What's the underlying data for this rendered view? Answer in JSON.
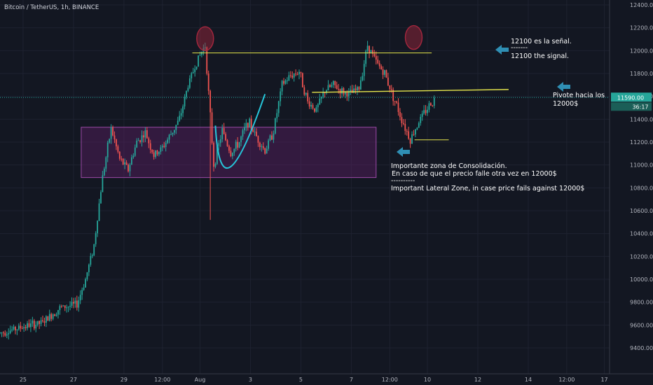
{
  "header": {
    "symbol": "Bitcoin / TetherUS, 1h, BINANCE"
  },
  "colors": {
    "background": "#131722",
    "grid": "#1e2230",
    "up": "#26a69a",
    "down": "#ef5350",
    "price_line": "#26a69a",
    "zone_fill": "#5b2063",
    "zone_border": "#9c4aa8",
    "yellow_line": "#e6e64c",
    "circle": "#a7273e",
    "arrow": "#2f8fb4",
    "cup": "#26c6da"
  },
  "chart_data": {
    "type": "candlestick",
    "title": "",
    "xlabel": "",
    "ylabel": "",
    "x_tick_labels": [
      "25",
      "27",
      "29",
      "12:00",
      "Aug",
      "3",
      "5",
      "7",
      "12:00",
      "10",
      "12",
      "14",
      "12:00",
      "17"
    ],
    "y_tick_labels": [
      "9400.00",
      "9600.00",
      "9800.00",
      "10000.00",
      "10200.00",
      "10400.00",
      "10600.00",
      "10800.00",
      "11000.00",
      "11200.00",
      "11400.00",
      "11600.00",
      "11800.00",
      "12000.00",
      "12200.00",
      "12400.00"
    ],
    "ylim": [
      9220,
      12450
    ],
    "current_price": {
      "label": "11590.00",
      "value": 11590,
      "countdown": "36:17"
    },
    "price_path": [
      [
        0,
        9530
      ],
      [
        3,
        9590
      ],
      [
        5,
        9620
      ],
      [
        7,
        9750
      ],
      [
        9,
        9780
      ],
      [
        10,
        10000
      ],
      [
        11,
        10300
      ],
      [
        12,
        10900
      ],
      [
        13,
        11320
      ],
      [
        14,
        11050
      ],
      [
        15,
        10960
      ],
      [
        16,
        11200
      ],
      [
        17,
        11280
      ],
      [
        18,
        11080
      ],
      [
        19,
        11150
      ],
      [
        20,
        11270
      ],
      [
        21,
        11400
      ],
      [
        22,
        11700
      ],
      [
        23,
        11900
      ],
      [
        24,
        12050
      ],
      [
        25,
        11000
      ],
      [
        26,
        11300
      ],
      [
        27,
        11100
      ],
      [
        28,
        11200
      ],
      [
        29,
        11380
      ],
      [
        30,
        11250
      ],
      [
        31,
        11120
      ],
      [
        32,
        11300
      ],
      [
        33,
        11700
      ],
      [
        34,
        11780
      ],
      [
        35,
        11820
      ],
      [
        36,
        11550
      ],
      [
        37,
        11480
      ],
      [
        38,
        11650
      ],
      [
        39,
        11700
      ],
      [
        40,
        11640
      ],
      [
        41,
        11620
      ],
      [
        42,
        11670
      ],
      [
        43,
        12050
      ],
      [
        44,
        11900
      ],
      [
        45,
        11800
      ],
      [
        46,
        11600
      ],
      [
        47,
        11400
      ],
      [
        48,
        11220
      ],
      [
        49,
        11380
      ],
      [
        50,
        11500
      ],
      [
        51,
        11590
      ]
    ],
    "annotations": {
      "resistance_line": {
        "value": 11980,
        "x_start": 22.5,
        "x_end": 50.5
      },
      "pivot_line": {
        "value_start": 11635,
        "value_end": 11660,
        "x_start": 36.5,
        "x_end": 59.5
      },
      "support_line": {
        "value": 11220,
        "x_start": 48.5,
        "x_end": 52.5
      },
      "consolidation_zone": {
        "low": 10890,
        "high": 11330,
        "x_start": 9.5,
        "x_end": 44
      },
      "circles": [
        {
          "x": 24,
          "value": 12050
        },
        {
          "x": 48.4,
          "value": 12060
        }
      ],
      "cup_curve": {
        "x_start": 25.2,
        "x_end": 31,
        "value_top": 11620,
        "value_bottom": 10980
      },
      "notes": {
        "signal_es": "12100 es la señal.",
        "signal_sep": "-------",
        "signal_en": "12100 the signal.",
        "pivot_1": "Pivote hacia los",
        "pivot_2": "12000$",
        "zone_1": "Importante zona de  Consolidación.",
        "zone_2": "En caso de que el precio falle otra vez en 12000$",
        "zone_3": "----------",
        "zone_4": "Important Lateral Zone, in case price fails against 12000$"
      }
    }
  }
}
